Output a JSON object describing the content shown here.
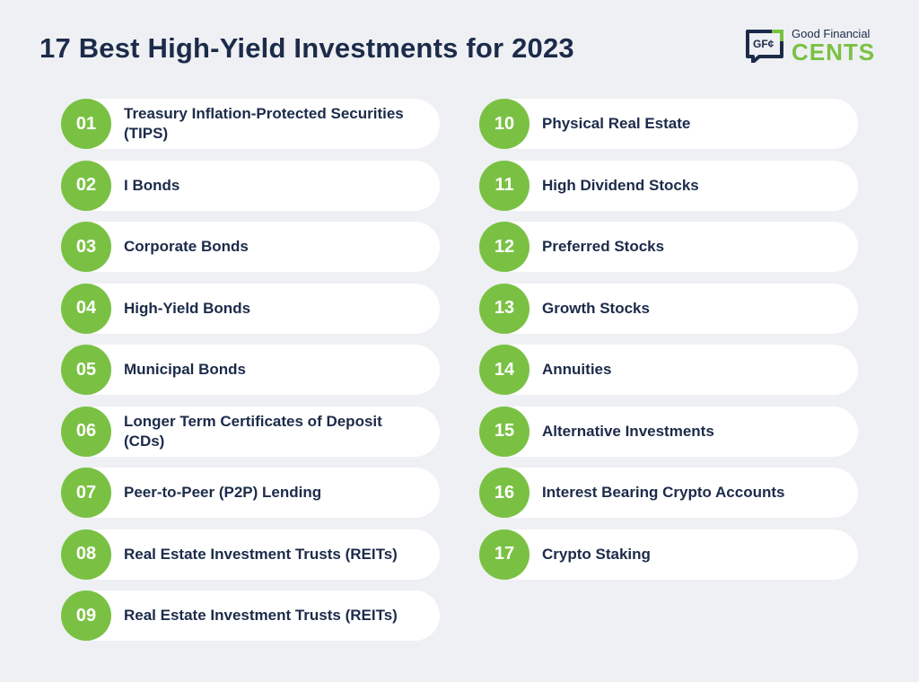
{
  "header": {
    "title": "17 Best High-Yield Investments for 2023"
  },
  "logo": {
    "mark": "GF¢",
    "top": "Good Financial",
    "bottom": "CENTS"
  },
  "colors": {
    "accent": "#7ac143",
    "navy": "#1c2b4a",
    "background": "#eef0f3",
    "card": "#ffffff"
  },
  "left_items": [
    {
      "num": "01",
      "label": "Treasury Inflation-Protected Securities (TIPS)"
    },
    {
      "num": "02",
      "label": "I Bonds"
    },
    {
      "num": "03",
      "label": "Corporate Bonds"
    },
    {
      "num": "04",
      "label": "High-Yield Bonds"
    },
    {
      "num": "05",
      "label": "Municipal Bonds"
    },
    {
      "num": "06",
      "label": "Longer Term Certificates of Deposit (CDs)"
    },
    {
      "num": "07",
      "label": "Peer-to-Peer (P2P) Lending"
    },
    {
      "num": "08",
      "label": "Real Estate Investment Trusts (REITs)"
    },
    {
      "num": "09",
      "label": "Real Estate Investment Trusts (REITs)"
    }
  ],
  "right_items": [
    {
      "num": "10",
      "label": "Physical Real Estate"
    },
    {
      "num": "11",
      "label": "High Dividend Stocks"
    },
    {
      "num": "12",
      "label": "Preferred Stocks"
    },
    {
      "num": "13",
      "label": "Growth Stocks"
    },
    {
      "num": "14",
      "label": "Annuities"
    },
    {
      "num": "15",
      "label": "Alternative Investments"
    },
    {
      "num": "16",
      "label": "Interest Bearing Crypto Accounts"
    },
    {
      "num": "17",
      "label": "Crypto Staking"
    }
  ]
}
